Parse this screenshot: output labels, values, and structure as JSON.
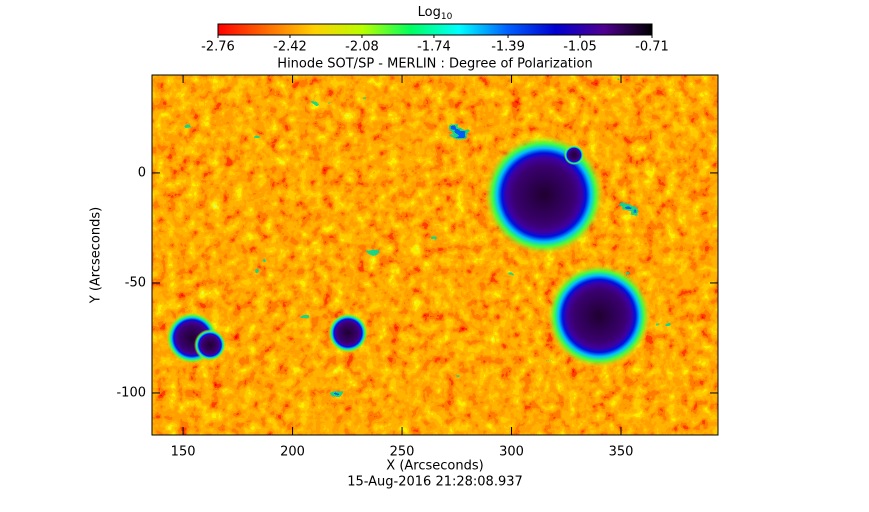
{
  "chart_data": {
    "type": "heatmap",
    "title": "Hinode SOT/SP - MERLIN : Degree of Polarization",
    "subtitle": "15-Aug-2016 21:28:08.937",
    "xlabel": "X (Arcseconds)",
    "ylabel": "Y (Arcseconds)",
    "xlim": [
      135.8,
      394.3
    ],
    "ylim": [
      -119.1,
      44.5
    ],
    "xticks": [
      150,
      200,
      250,
      300,
      350
    ],
    "yticks": [
      -100,
      -50,
      0
    ],
    "colorbar": {
      "label": "Log",
      "label_sub": "10",
      "lim": [
        -2.76,
        -0.71
      ],
      "ticks": [
        -2.76,
        -2.42,
        -2.08,
        -1.74,
        -1.39,
        -1.05,
        -0.71
      ],
      "colormap": [
        "#ff0000",
        "#ff6a00",
        "#ffd000",
        "#b8ff00",
        "#00ff60",
        "#00ffff",
        "#0060ff",
        "#0000d0",
        "#500090",
        "#000000"
      ]
    }
  }
}
